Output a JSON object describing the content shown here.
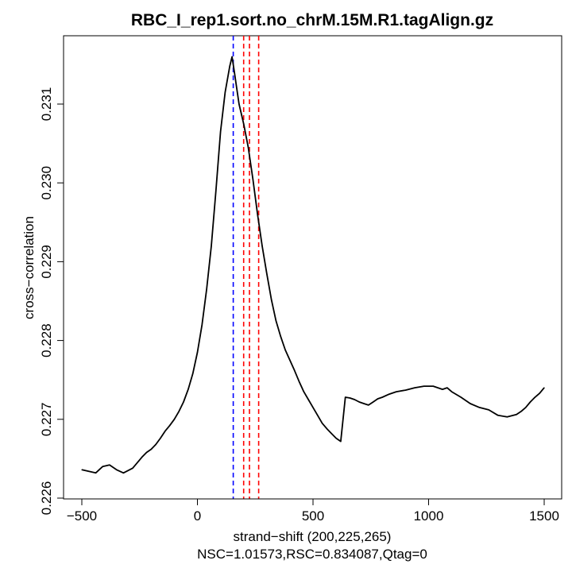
{
  "chart_data": {
    "type": "line",
    "title": "RBC_I_rep1.sort.no_chrM.15M.R1.tagAlign.gz",
    "xlabel": "strand−shift (200,225,265)",
    "subtitle": "NSC=1.01573,RSC=0.834087,Qtag=0",
    "ylabel": "cross−correlation",
    "xlim": [
      -500,
      1500
    ],
    "ylim": [
      0.2261,
      0.2317
    ],
    "x_ticks": [
      -500,
      0,
      500,
      1000,
      1500
    ],
    "x_tick_labels": [
      "−500",
      "0",
      "500",
      "1000",
      "1500"
    ],
    "y_ticks": [
      0.226,
      0.227,
      0.228,
      0.229,
      0.23,
      0.231
    ],
    "y_tick_labels": [
      "0.226",
      "0.227",
      "0.228",
      "0.229",
      "0.230",
      "0.231"
    ],
    "grid": false,
    "legend": "none",
    "colors": {
      "line": "#000000",
      "peak_marker": "#0000ff",
      "shift_markers": "#ff0000"
    },
    "series": [
      {
        "x": [
          -500,
          -470,
          -440,
          -410,
          -380,
          -350,
          -320,
          -300,
          -280,
          -260,
          -240,
          -220,
          -200,
          -180,
          -160,
          -140,
          -120,
          -100,
          -80,
          -60,
          -40,
          -20,
          0,
          20,
          40,
          60,
          80,
          100,
          120,
          140,
          150,
          160,
          170,
          180,
          200,
          220,
          240,
          260,
          280,
          300,
          320,
          340,
          360,
          380,
          400,
          420,
          440,
          460,
          480,
          500,
          520,
          540,
          560,
          580,
          600,
          620,
          640,
          660,
          680,
          700,
          720,
          740,
          760,
          780,
          800,
          830,
          860,
          900,
          940,
          980,
          1020,
          1060,
          1080,
          1100,
          1140,
          1180,
          1220,
          1260,
          1300,
          1340,
          1380,
          1400,
          1420,
          1440,
          1460,
          1480,
          1500
        ],
        "y": [
          0.22636,
          0.22634,
          0.22632,
          0.2264,
          0.22642,
          0.22636,
          0.22632,
          0.22635,
          0.22638,
          0.22645,
          0.22652,
          0.22658,
          0.22662,
          0.22668,
          0.22676,
          0.22685,
          0.22692,
          0.227,
          0.2271,
          0.22722,
          0.22738,
          0.22758,
          0.22785,
          0.2282,
          0.22865,
          0.2292,
          0.2299,
          0.23065,
          0.23115,
          0.23148,
          0.2316,
          0.2314,
          0.2312,
          0.231,
          0.23075,
          0.23045,
          0.23005,
          0.2296,
          0.2292,
          0.22885,
          0.22852,
          0.22825,
          0.22805,
          0.22788,
          0.22775,
          0.22762,
          0.22748,
          0.22735,
          0.22725,
          0.22715,
          0.22705,
          0.22695,
          0.22688,
          0.22682,
          0.22676,
          0.22672,
          0.22728,
          0.22727,
          0.22725,
          0.22722,
          0.2272,
          0.22718,
          0.22722,
          0.22726,
          0.22728,
          0.22732,
          0.22735,
          0.22737,
          0.2274,
          0.22742,
          0.22742,
          0.22738,
          0.2274,
          0.22735,
          0.22728,
          0.2272,
          0.22715,
          0.22712,
          0.22705,
          0.22703,
          0.22706,
          0.2271,
          0.22715,
          0.22722,
          0.22728,
          0.22733,
          0.2274
        ]
      }
    ],
    "vertical_markers": [
      {
        "x": 155,
        "color": "#0000ff"
      },
      {
        "x": 200,
        "color": "#ff0000"
      },
      {
        "x": 225,
        "color": "#ff0000"
      },
      {
        "x": 265,
        "color": "#ff0000"
      }
    ]
  }
}
